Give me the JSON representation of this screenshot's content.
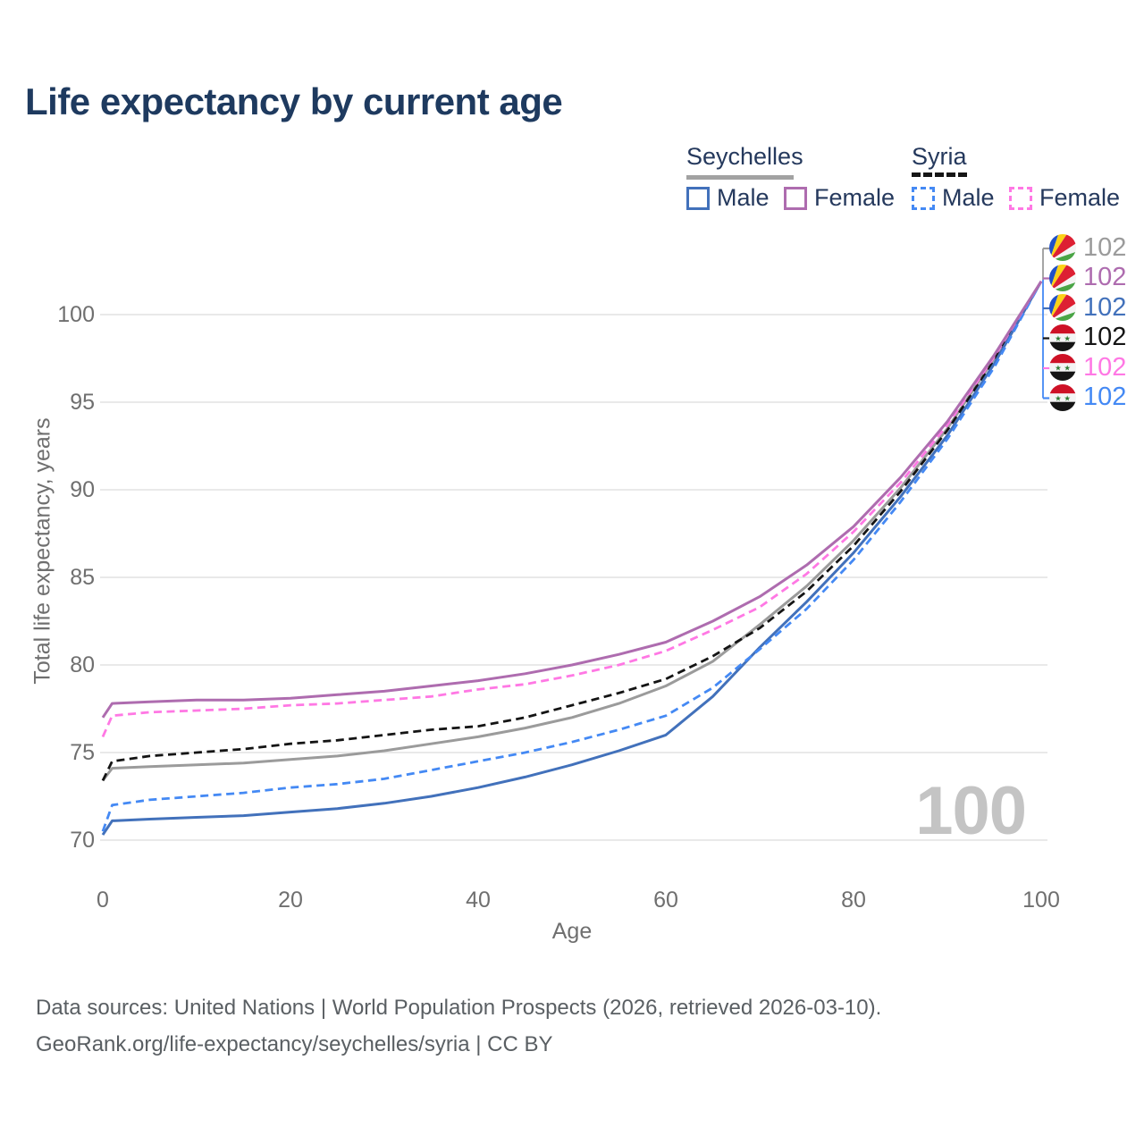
{
  "title": "Life expectancy by current age",
  "legend": {
    "countries": [
      {
        "name": "Seychelles",
        "line_style": "solid",
        "items": [
          {
            "label": "Male",
            "color": "#4271bb"
          },
          {
            "label": "Female",
            "color": "#ae6caf"
          }
        ]
      },
      {
        "name": "Syria",
        "line_style": "dashed",
        "items": [
          {
            "label": "Male",
            "color": "#4489f4"
          },
          {
            "label": "Female",
            "color": "#ff78e4"
          }
        ]
      }
    ]
  },
  "chart_data": {
    "type": "line",
    "title": "Life expectancy by current age",
    "xlabel": "Age",
    "ylabel": "Total life expectancy, years",
    "xlim": [
      0,
      100
    ],
    "ylim": [
      69.5,
      102.5
    ],
    "xticks": [
      0,
      20,
      40,
      60,
      80,
      100
    ],
    "yticks": [
      70,
      75,
      80,
      85,
      90,
      95,
      100
    ],
    "grid": "horizontal-only",
    "legend_position": "top-right",
    "hover_age_indicator": "100",
    "x": [
      0,
      1,
      5,
      10,
      15,
      20,
      25,
      30,
      35,
      40,
      45,
      50,
      55,
      60,
      65,
      70,
      75,
      80,
      85,
      90,
      95,
      100
    ],
    "series": [
      {
        "name": "Seychelles Total",
        "country": "seychelles",
        "color": "#9b9b9b",
        "dash": false,
        "end_label": "102",
        "values": [
          73.4,
          74.1,
          74.2,
          74.3,
          74.4,
          74.6,
          74.8,
          75.1,
          75.5,
          75.9,
          76.4,
          77.0,
          77.8,
          78.8,
          80.2,
          82.3,
          84.5,
          87.1,
          90.1,
          93.5,
          97.5,
          101.9
        ]
      },
      {
        "name": "Seychelles Female",
        "country": "seychelles",
        "color": "#ae6caf",
        "dash": false,
        "end_label": "102",
        "values": [
          77.0,
          77.8,
          77.9,
          78.0,
          78.0,
          78.1,
          78.3,
          78.5,
          78.8,
          79.1,
          79.5,
          80.0,
          80.6,
          81.3,
          82.5,
          83.9,
          85.7,
          87.9,
          90.7,
          93.9,
          97.7,
          101.9
        ]
      },
      {
        "name": "Seychelles Male",
        "country": "seychelles",
        "color": "#4271bb",
        "dash": false,
        "end_label": "102",
        "values": [
          70.3,
          71.1,
          71.2,
          71.3,
          71.4,
          71.6,
          71.8,
          72.1,
          72.5,
          73.0,
          73.6,
          74.3,
          75.1,
          76.0,
          78.2,
          81.0,
          83.6,
          86.4,
          89.6,
          93.1,
          97.2,
          101.9
        ]
      },
      {
        "name": "Syria Total",
        "country": "syria",
        "color": "#141414",
        "dash": true,
        "end_label": "102",
        "values": [
          73.4,
          74.5,
          74.8,
          75.0,
          75.2,
          75.5,
          75.7,
          76.0,
          76.3,
          76.5,
          77.0,
          77.7,
          78.4,
          79.2,
          80.5,
          82.1,
          84.2,
          86.8,
          89.9,
          93.4,
          97.4,
          101.9
        ]
      },
      {
        "name": "Syria Female",
        "country": "syria",
        "color": "#ff78e4",
        "dash": true,
        "end_label": "102",
        "values": [
          75.9,
          77.1,
          77.3,
          77.4,
          77.5,
          77.7,
          77.8,
          78.0,
          78.2,
          78.6,
          78.9,
          79.4,
          80.0,
          80.8,
          82.0,
          83.3,
          85.2,
          87.6,
          90.4,
          93.7,
          97.6,
          101.9
        ]
      },
      {
        "name": "Syria Male",
        "country": "syria",
        "color": "#4489f4",
        "dash": true,
        "end_label": "102",
        "values": [
          70.5,
          72.0,
          72.3,
          72.5,
          72.7,
          73.0,
          73.2,
          73.5,
          74.0,
          74.5,
          75.0,
          75.6,
          76.3,
          77.1,
          78.7,
          80.9,
          83.2,
          86.0,
          89.3,
          92.9,
          97.0,
          101.9
        ]
      }
    ]
  },
  "footer": {
    "line1": "Data sources: United Nations | World Population Prospects (2026, retrieved 2026-03-10).",
    "line2": "GeoRank.org/life-expectancy/seychelles/syria | CC BY"
  }
}
